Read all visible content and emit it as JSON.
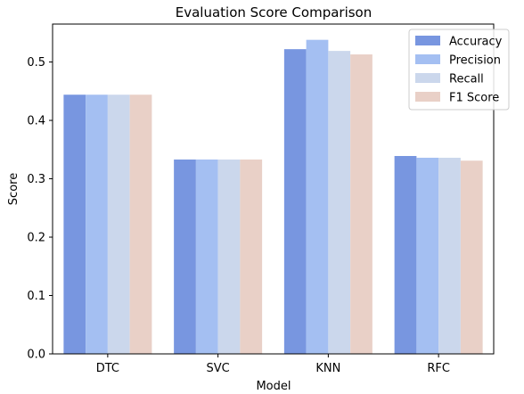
{
  "chart_data": {
    "type": "bar",
    "title": "Evaluation Score Comparison",
    "xlabel": "Model",
    "ylabel": "Score",
    "categories": [
      "DTC",
      "SVC",
      "KNN",
      "RFC"
    ],
    "series": [
      {
        "name": "Accuracy",
        "color": "#7896e0",
        "values": [
          0.444,
          0.333,
          0.522,
          0.339
        ]
      },
      {
        "name": "Precision",
        "color": "#a4bff2",
        "values": [
          0.444,
          0.333,
          0.538,
          0.336
        ]
      },
      {
        "name": "Recall",
        "color": "#cbd7ec",
        "values": [
          0.444,
          0.333,
          0.519,
          0.336
        ]
      },
      {
        "name": "F1 Score",
        "color": "#e9d0c7",
        "values": [
          0.444,
          0.333,
          0.513,
          0.331
        ]
      }
    ],
    "yticks": [
      "0.0",
      "0.1",
      "0.2",
      "0.3",
      "0.4",
      "0.5"
    ],
    "ylim": [
      0,
      0.565
    ],
    "grid": false,
    "legend_position": "top-right"
  }
}
